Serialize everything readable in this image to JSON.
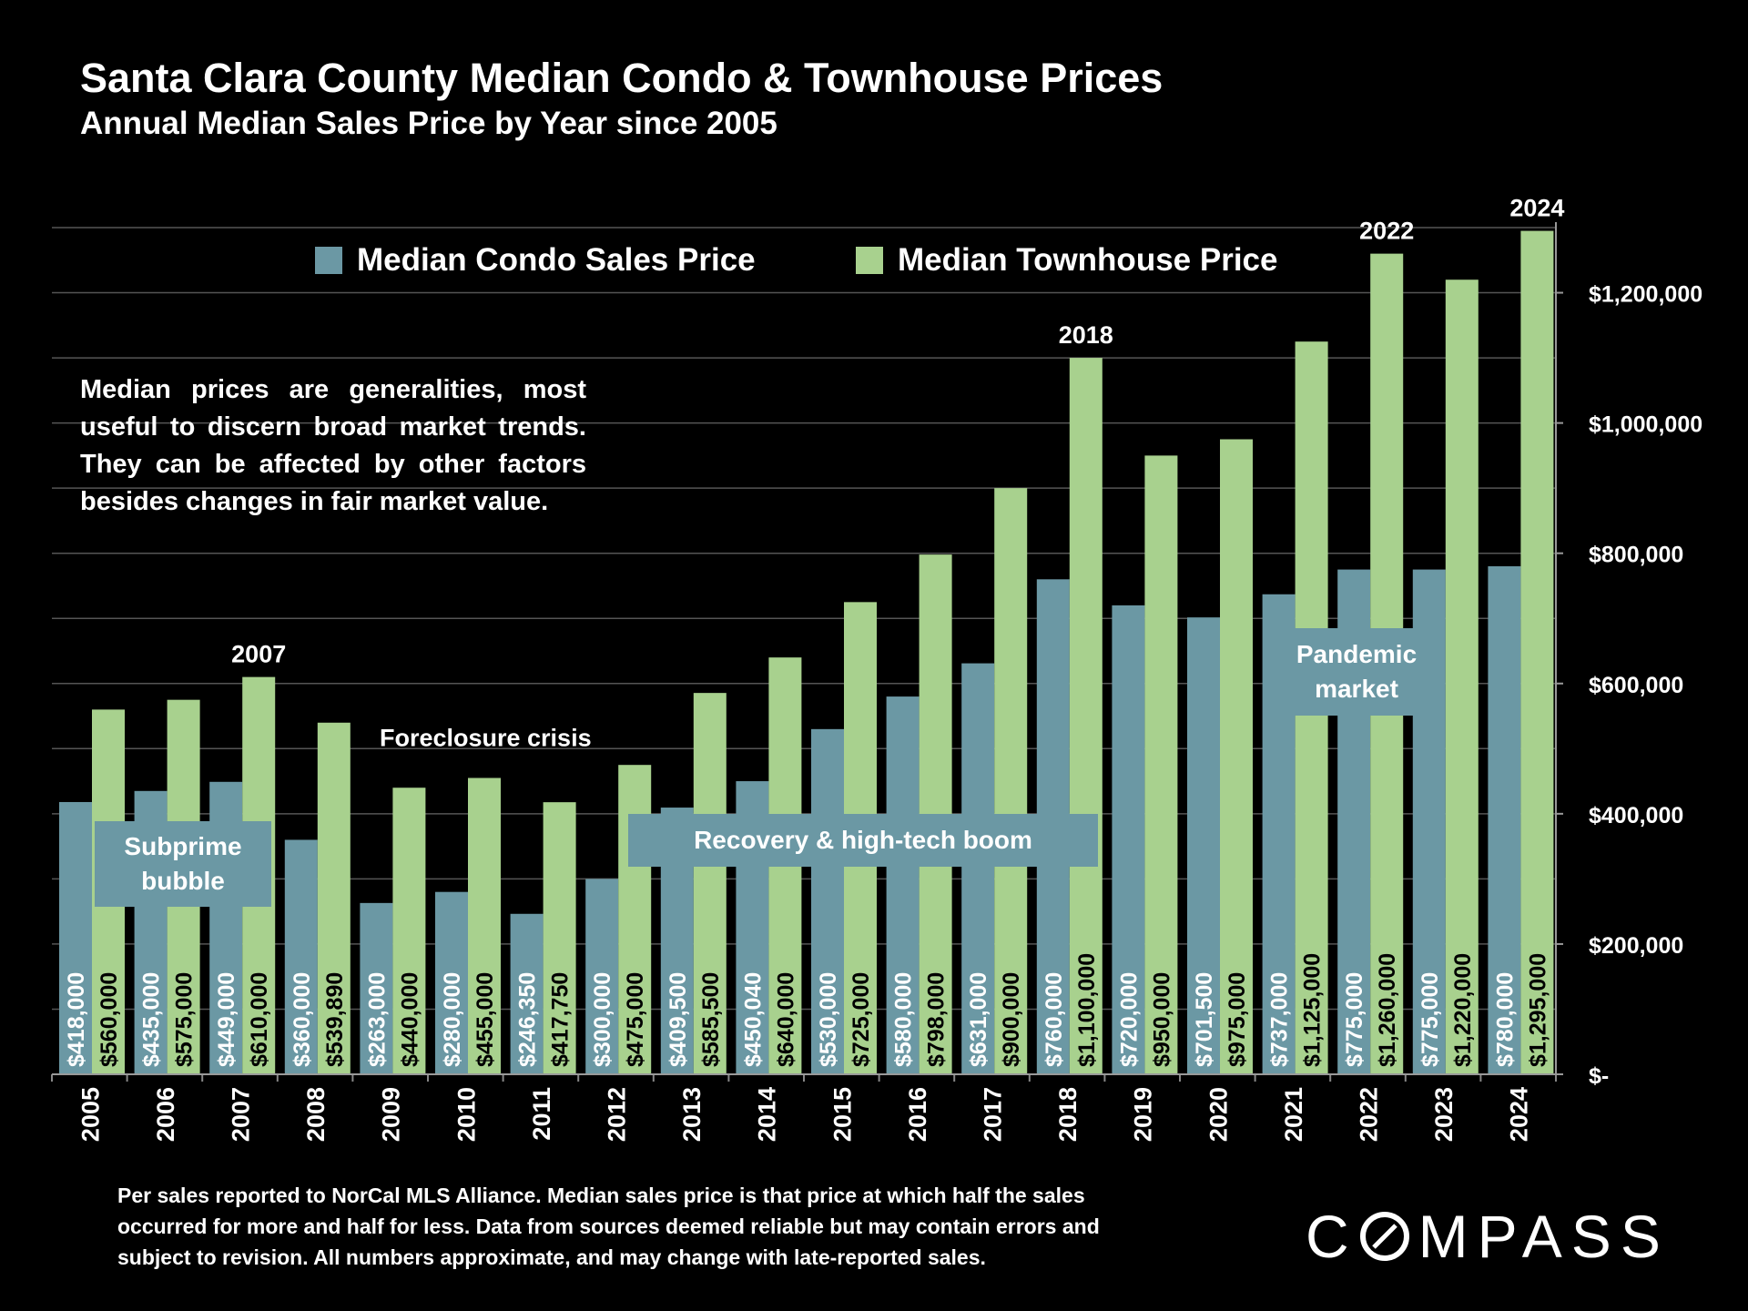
{
  "header": {
    "title": "Santa Clara County Median Condo & Townhouse Prices",
    "subtitle": "Annual Median Sales Price by Year since 2005"
  },
  "note": "Median prices are generalities, most useful to discern broad market trends. They can be affected by other factors besides changes in fair market value.",
  "callouts": {
    "subprime": "Subprime bubble",
    "recovery": "Recovery & high-tech boom",
    "pandemic": "Pandemic market"
  },
  "footer": "Per sales reported to NorCal MLS Alliance. Median sales price is that price at which half the sales occurred for more and half for less. Data from sources deemed reliable but may contain errors and subject to revision. All numbers approximate, and may change with late-reported sales.",
  "logo": {
    "before": "C",
    "after": "MPASS"
  },
  "colors": {
    "condo": "#6b98a4",
    "townhouse": "#a8d18e",
    "background": "#000000",
    "grid": "#555555"
  },
  "chart_data": {
    "type": "bar",
    "categories": [
      "2005",
      "2006",
      "2007",
      "2008",
      "2009",
      "2010",
      "2011",
      "2012",
      "2013",
      "2014",
      "2015",
      "2016",
      "2017",
      "2018",
      "2019",
      "2020",
      "2021",
      "2022",
      "2023",
      "2024"
    ],
    "series": [
      {
        "name": "Median Condo Sales Price",
        "values": [
          418000,
          435000,
          449000,
          360000,
          263000,
          280000,
          246350,
          300000,
          409500,
          450040,
          530000,
          580000,
          631000,
          760000,
          720000,
          701500,
          737000,
          775000,
          775000,
          780000
        ],
        "labels": [
          "$418,000",
          "$435,000",
          "$449,000",
          "$360,000",
          "$263,000",
          "$280,000",
          "$246,350",
          "$300,000",
          "$409,500",
          "$450,040",
          "$530,000",
          "$580,000",
          "$631,000",
          "$760,000",
          "$720,000",
          "$701,500",
          "$737,000",
          "$775,000",
          "$775,000",
          "$780,000"
        ]
      },
      {
        "name": "Median Townhouse Price",
        "values": [
          560000,
          575000,
          610000,
          539890,
          440000,
          455000,
          417750,
          475000,
          585500,
          640000,
          725000,
          798000,
          900000,
          1100000,
          950000,
          975000,
          1125000,
          1260000,
          1220000,
          1295000
        ],
        "labels": [
          "$560,000",
          "$575,000",
          "$610,000",
          "$539,890",
          "$440,000",
          "$455,000",
          "$417,750",
          "$475,000",
          "$585,500",
          "$640,000",
          "$725,000",
          "$798,000",
          "$900,000",
          "$1,100,000",
          "$950,000",
          "$975,000",
          "$1,125,000",
          "$1,260,000",
          "$1,220,000",
          "$1,295,000"
        ]
      }
    ],
    "ylim": [
      0,
      1300000
    ],
    "yticks": [
      0,
      200000,
      400000,
      600000,
      800000,
      1000000,
      1200000
    ],
    "ytick_labels": [
      "$-",
      "$200,000",
      "$400,000",
      "$600,000",
      "$800,000",
      "$1,000,000",
      "$1,200,000"
    ],
    "grid": true,
    "legend_position": "top",
    "annotations": [
      {
        "text": "2007",
        "category": "2007"
      },
      {
        "text": "Foreclosure crisis",
        "category": "2010"
      },
      {
        "text": "2018",
        "category": "2018"
      },
      {
        "text": "2022",
        "category": "2022"
      },
      {
        "text": "2024",
        "category": "2024"
      }
    ]
  }
}
